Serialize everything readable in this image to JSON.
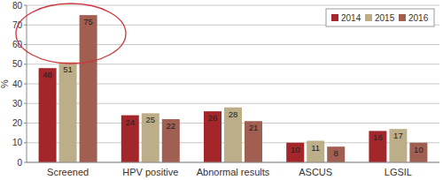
{
  "chart_data": {
    "type": "bar",
    "y_label": "%",
    "categories": [
      "Screened",
      "HPV positive",
      "Abnormal results",
      "ASCUS",
      "LGSIL"
    ],
    "series": [
      {
        "name": "2014",
        "color": "#a3262b",
        "values": [
          48,
          24,
          26,
          10,
          16
        ]
      },
      {
        "name": "2015",
        "color": "#bcae88",
        "values": [
          51,
          25,
          28,
          11,
          17
        ]
      },
      {
        "name": "2016",
        "color": "#a05f51",
        "values": [
          75,
          22,
          21,
          8,
          10
        ]
      }
    ],
    "ylim": [
      0,
      80
    ],
    "yticks": [
      0,
      10,
      20,
      30,
      40,
      50,
      60,
      70,
      80
    ],
    "grid": true,
    "legend": "top-right",
    "data_labels": true
  }
}
